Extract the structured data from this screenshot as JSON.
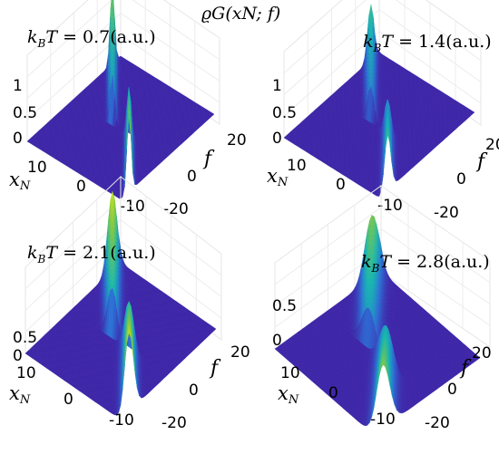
{
  "figure": {
    "title": "ϱG(xN; f)",
    "colormap": [
      "#3e26a8",
      "#2d6fd6",
      "#17b7b0",
      "#8cc93d",
      "#f9fb15"
    ]
  },
  "chart_data": [
    {
      "type": "surface3d",
      "title": "kBT = 0.7(a.u.)",
      "title_parts": {
        "lhs": "k",
        "sub": "B",
        "var": "T",
        "value": "= 0.7(a.u.)"
      },
      "xlabel": "xN",
      "ylabel": "f",
      "x_ticks": [
        "10",
        "0",
        "-10"
      ],
      "y_ticks": [
        "20",
        "0",
        "-20"
      ],
      "z_ticks": [
        "1",
        "0.5",
        "0"
      ],
      "xlim": [
        -20,
        20
      ],
      "ylim": [
        -20,
        20
      ],
      "zlim": [
        0,
        1
      ],
      "ridge_width": 0.9,
      "ridge_peak": 1.0,
      "ridge_shift": 6
    },
    {
      "type": "surface3d",
      "title": "kBT = 1.4(a.u.)",
      "title_parts": {
        "lhs": "k",
        "sub": "B",
        "var": "T",
        "value": "= 1.4(a.u.)"
      },
      "xlabel": "xN",
      "ylabel": "f",
      "x_ticks": [
        "10",
        "0",
        "-10"
      ],
      "y_ticks": [
        "20",
        "0",
        "-20"
      ],
      "z_ticks": [
        "1",
        "0.5",
        "0"
      ],
      "xlim": [
        -20,
        20
      ],
      "ylim": [
        -20,
        20
      ],
      "zlim": [
        0,
        1
      ],
      "ridge_width": 1.3,
      "ridge_peak": 0.7,
      "ridge_shift": 6
    },
    {
      "type": "surface3d",
      "title": "kBT = 2.1(a.u.)",
      "title_parts": {
        "lhs": "k",
        "sub": "B",
        "var": "T",
        "value": "= 2.1(a.u.)"
      },
      "xlabel": "xN",
      "ylabel": "f",
      "x_ticks": [
        "10",
        "0",
        "-10"
      ],
      "y_ticks": [
        "20",
        "0",
        "-20"
      ],
      "z_ticks": [
        "0.5",
        "0"
      ],
      "xlim": [
        -20,
        20
      ],
      "ylim": [
        -20,
        20
      ],
      "zlim": [
        0,
        0.5
      ],
      "ridge_width": 1.9,
      "ridge_peak": 0.5,
      "ridge_shift": 6
    },
    {
      "type": "surface3d",
      "title": "kBT = 2.8(a.u.)",
      "title_parts": {
        "lhs": "k",
        "sub": "B",
        "var": "T",
        "value": "= 2.8(a.u.)"
      },
      "xlabel": "xN",
      "ylabel": "f",
      "x_ticks": [
        "10",
        "0",
        "-10"
      ],
      "y_ticks": [
        "20",
        "0",
        "-20"
      ],
      "z_ticks": [
        "0.5",
        "0"
      ],
      "xlim": [
        -20,
        20
      ],
      "ylim": [
        -20,
        20
      ],
      "zlim": [
        0,
        0.5
      ],
      "ridge_width": 2.6,
      "ridge_peak": 0.4,
      "ridge_shift": 6
    }
  ]
}
